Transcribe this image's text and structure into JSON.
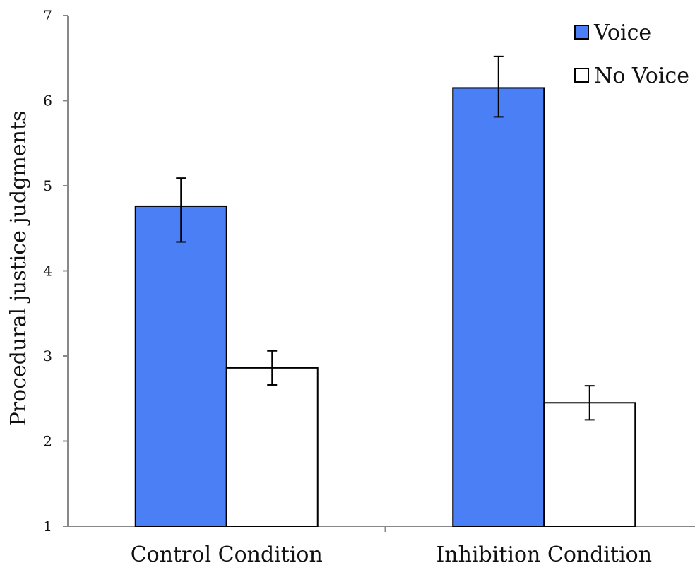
{
  "chart_data": {
    "type": "bar",
    "title": "",
    "xlabel": "",
    "ylabel": "Procedural justice judgments",
    "ylim": [
      1,
      7
    ],
    "yticks": [
      1,
      2,
      3,
      4,
      5,
      6,
      7
    ],
    "grid": false,
    "legend_position": "top-right",
    "categories": [
      "Control Condition",
      "Inhibition Condition"
    ],
    "series": [
      {
        "name": "Voice",
        "color": "#4a7ff5",
        "values": [
          4.76,
          6.15
        ],
        "error_low": [
          4.34,
          5.81
        ],
        "error_high": [
          5.09,
          6.52
        ]
      },
      {
        "name": "No Voice",
        "color": "#ffffff",
        "values": [
          2.86,
          2.45
        ],
        "error_low": [
          2.66,
          2.25
        ],
        "error_high": [
          3.06,
          2.65
        ]
      }
    ]
  }
}
